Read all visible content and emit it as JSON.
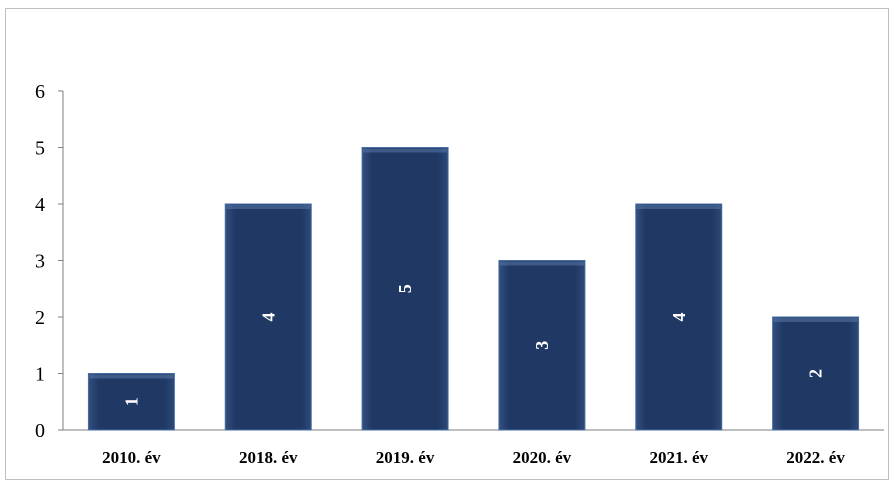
{
  "chart_data": {
    "type": "bar",
    "categories": [
      "2010. év",
      "2018. év",
      "2019. év",
      "2020. év",
      "2021. év",
      "2022. év"
    ],
    "values": [
      1,
      4,
      5,
      3,
      4,
      2
    ],
    "data_labels": [
      "1",
      "4",
      "5",
      "3",
      "4",
      "2"
    ],
    "y_ticks": [
      "0",
      "1",
      "2",
      "3",
      "4",
      "5",
      "6"
    ],
    "ylim": [
      0,
      6
    ],
    "grid": false,
    "legend": "none",
    "data_label_orientation": "rotated-90",
    "colors": {
      "bar_fill": "#1f3864",
      "bar_edge": "#4a6fa5",
      "axis": "#7f7f7f"
    }
  }
}
